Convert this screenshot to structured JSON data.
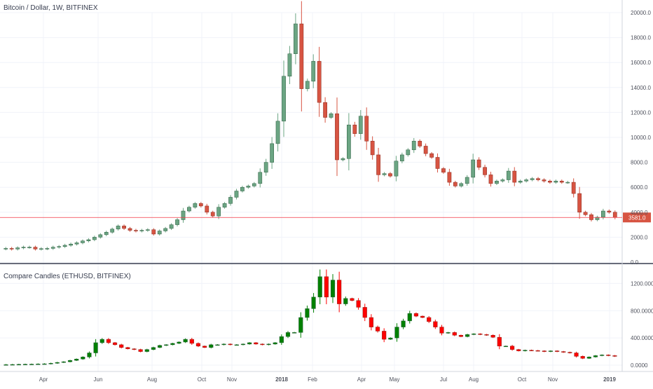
{
  "chart_data": [
    {
      "type": "candlestick",
      "title": "Bitcoin / Dollar, 1W, BITFINEX",
      "ylim": [
        0,
        20000
      ],
      "y_ticks": [
        "0.0",
        "2000.0",
        "4000.0",
        "6000.0",
        "8000.0",
        "10000.0",
        "12000.0",
        "14000.0",
        "16000.0",
        "18000.0",
        "20000.0"
      ],
      "y_tick_values": [
        0,
        2000,
        4000,
        6000,
        8000,
        10000,
        12000,
        14000,
        16000,
        18000,
        20000
      ],
      "last_price_label": "3581.0",
      "last_price": 3581,
      "up_color": "#6ba583",
      "down_color": "#d75442",
      "series_values": [
        1100,
        1050,
        1150,
        1200,
        1200,
        1050,
        1080,
        1100,
        1200,
        1250,
        1350,
        1450,
        1550,
        1700,
        1800,
        2000,
        2200,
        2400,
        2650,
        2900,
        2700,
        2550,
        2500,
        2550,
        2600,
        2250,
        2500,
        2700,
        3000,
        3400,
        4100,
        4400,
        4700,
        4500,
        4000,
        3700,
        4400,
        4700,
        5200,
        5700,
        6000,
        6100,
        6300,
        7200,
        8000,
        9500,
        11300,
        14900,
        16700,
        19100,
        13900,
        14500,
        16100,
        12800,
        11600,
        11900,
        8200,
        8300,
        11000,
        10300,
        11700,
        9700,
        8600,
        7000,
        7100,
        6900,
        8100,
        8600,
        9000,
        9700,
        9300,
        8700,
        8400,
        7500,
        7200,
        6400,
        6100,
        6300,
        6800,
        8200,
        7600,
        7000,
        6300,
        6500,
        6600,
        7300,
        6400,
        6500,
        6600,
        6700,
        6600,
        6500,
        6400,
        6500,
        6400,
        6400,
        5500,
        4000,
        3800,
        3400,
        3600,
        4100,
        4000,
        3581
      ]
    },
    {
      "type": "candlestick",
      "title": "Compare Candles (ETHUSD, BITFINEX)",
      "ylim": [
        0,
        1400
      ],
      "y_ticks": [
        "0.0000",
        "400.0000",
        "800.0000",
        "1200.0000"
      ],
      "y_tick_values": [
        0,
        400,
        800,
        1200
      ],
      "up_color": "#008000",
      "down_color": "#ff0000",
      "series_values": [
        8,
        10,
        12,
        14,
        15,
        18,
        20,
        28,
        40,
        50,
        70,
        90,
        120,
        180,
        330,
        380,
        330,
        300,
        260,
        240,
        230,
        200,
        230,
        260,
        290,
        300,
        320,
        340,
        380,
        320,
        280,
        260,
        300,
        300,
        310,
        300,
        300,
        310,
        330,
        310,
        300,
        310,
        330,
        420,
        480,
        480,
        700,
        830,
        1000,
        1300,
        1000,
        1250,
        900,
        980,
        950,
        850,
        700,
        560,
        500,
        380,
        400,
        560,
        650,
        760,
        720,
        700,
        640,
        560,
        470,
        480,
        440,
        420,
        450,
        460,
        450,
        440,
        410,
        280,
        280,
        230,
        210,
        220,
        215,
        210,
        200,
        210,
        200,
        190,
        180,
        130,
        100,
        120,
        140,
        150,
        140,
        130
      ]
    }
  ],
  "x_axis": {
    "labels": [
      "Apr",
      "Jun",
      "Aug",
      "Oct",
      "Nov",
      "2018",
      "Feb",
      "Apr",
      "May",
      "Jul",
      "Aug",
      "Oct",
      "Nov",
      "2019"
    ],
    "bold": [
      false,
      false,
      false,
      false,
      false,
      true,
      false,
      false,
      false,
      false,
      false,
      false,
      false,
      true
    ]
  }
}
